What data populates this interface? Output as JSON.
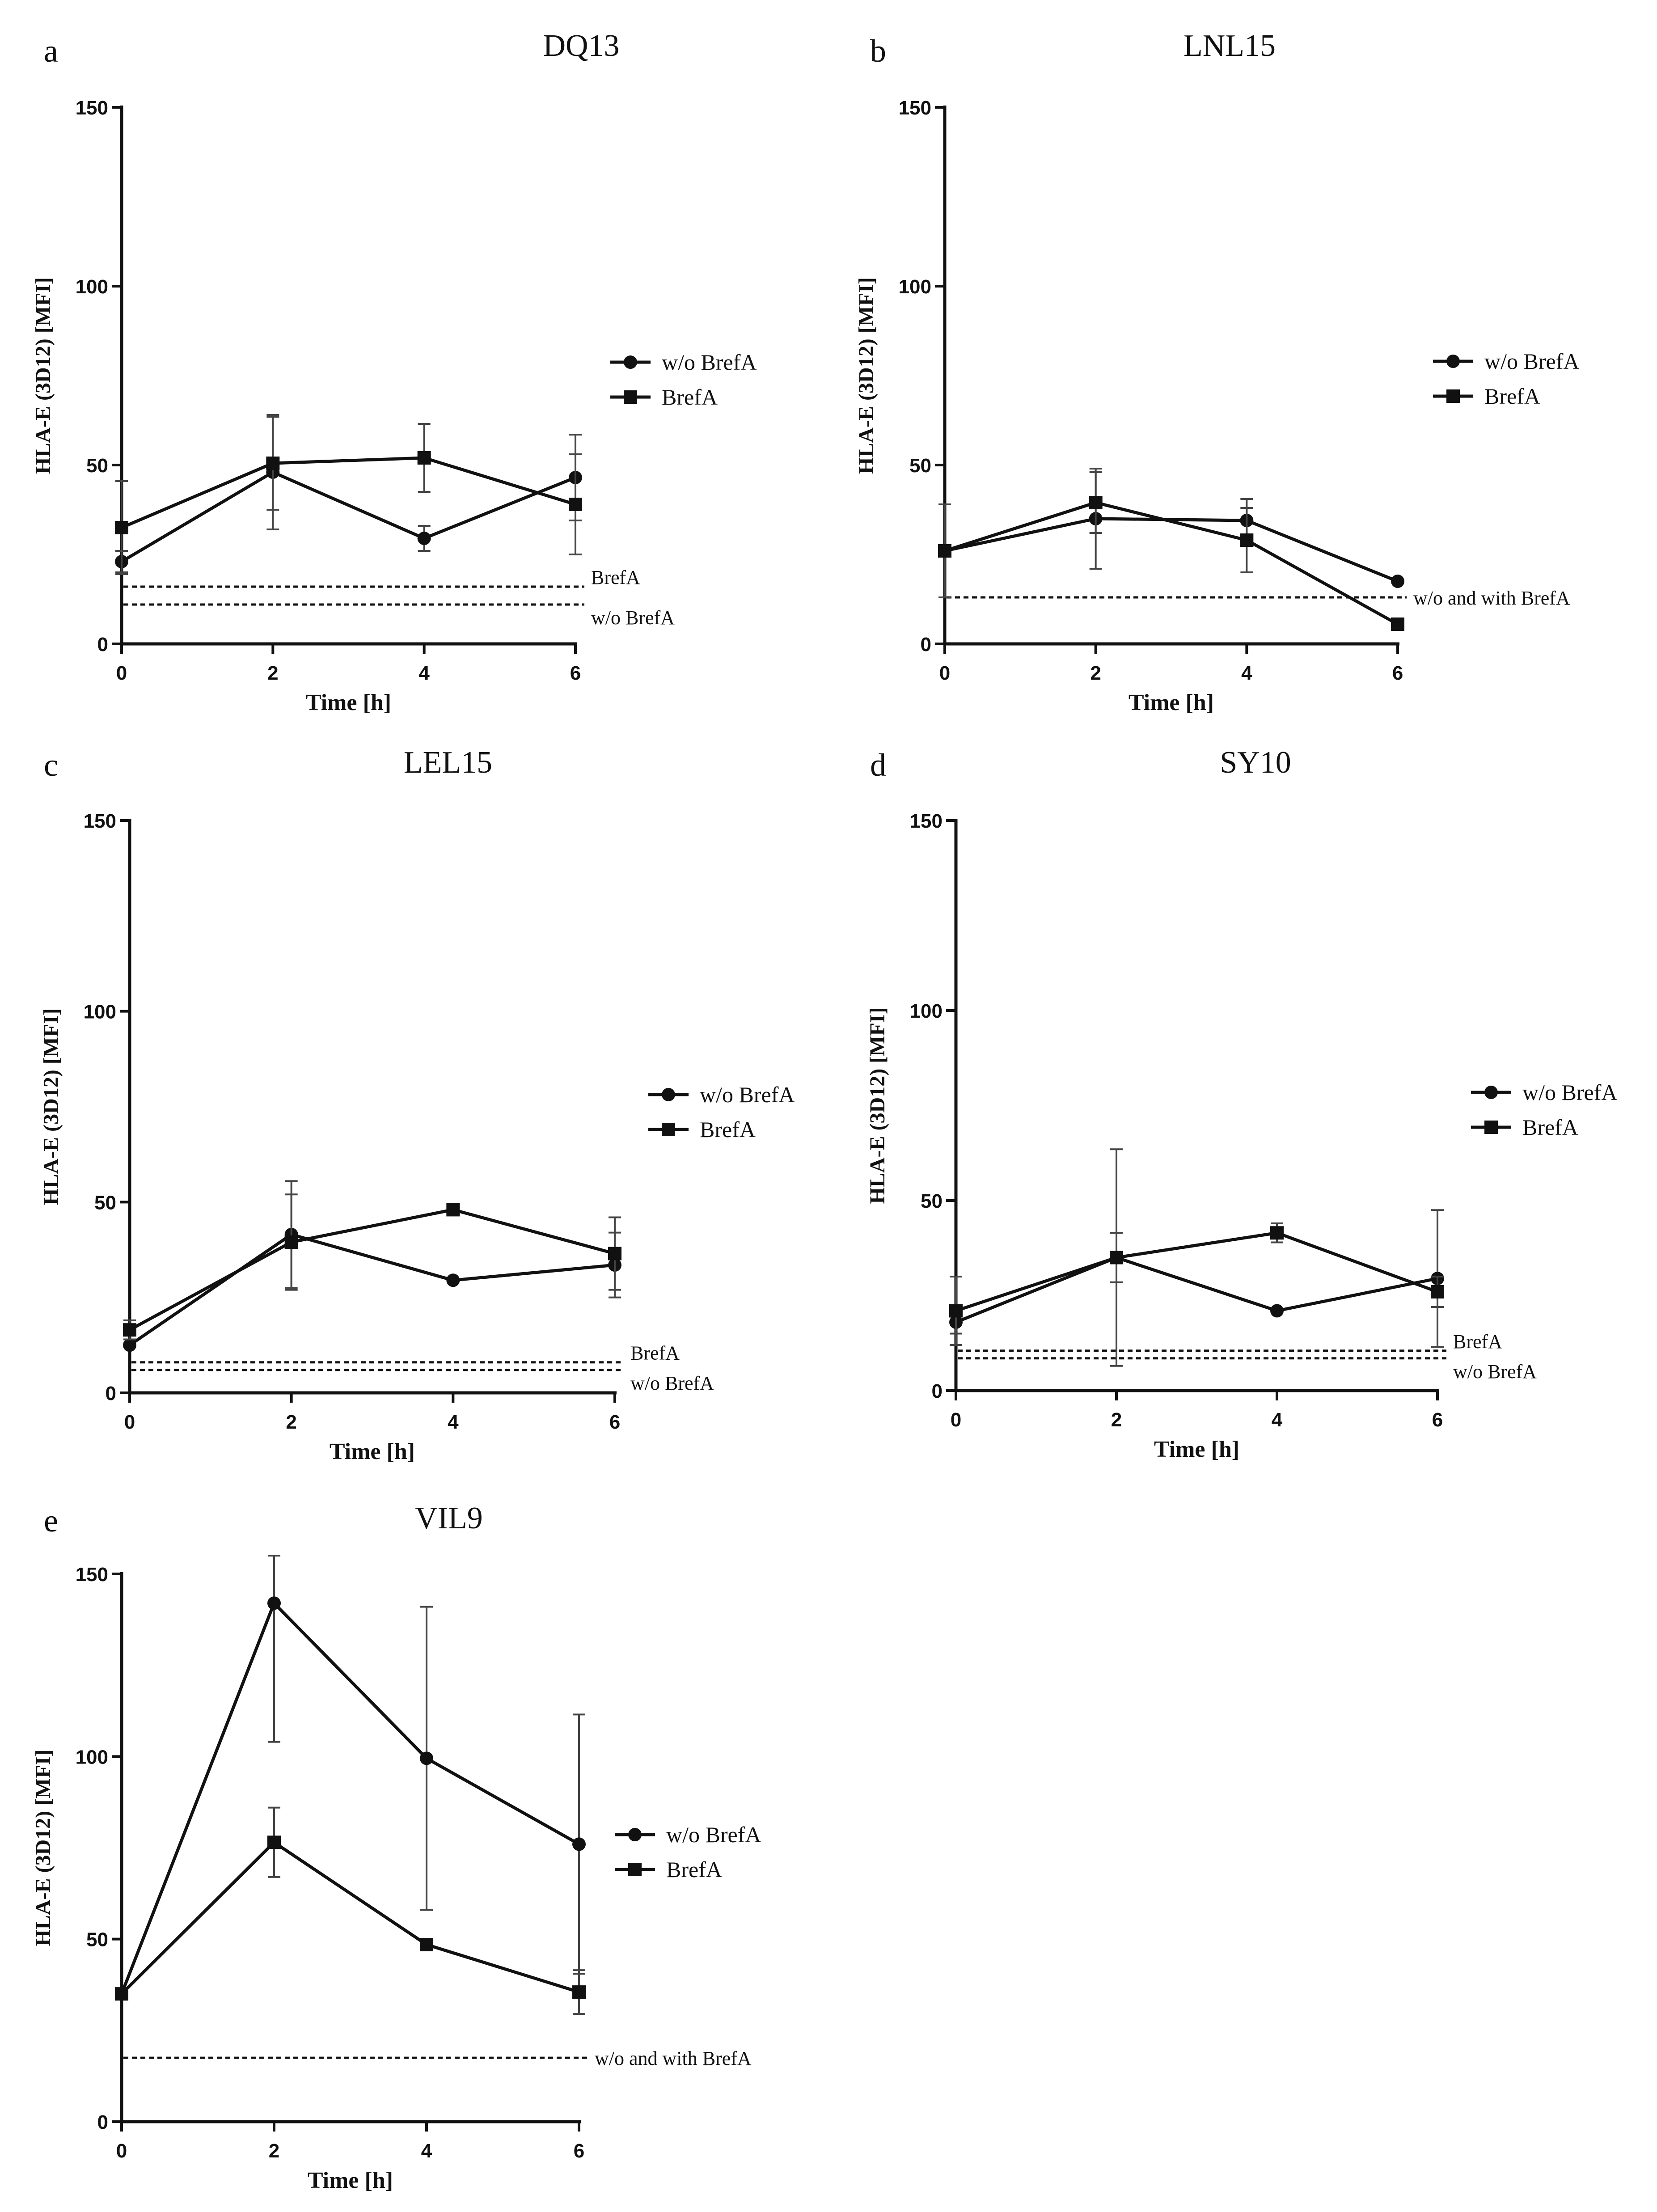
{
  "chart_data": [
    {
      "type": "line",
      "panel_label": "a",
      "title": "DQ13",
      "xlabel": "Time [h]",
      "ylabel": "HLA-E (3D12) [MFI]",
      "xlim": [
        0,
        6
      ],
      "ylim": [
        0,
        150
      ],
      "x_ticks": [
        "0",
        "2",
        "4",
        "6"
      ],
      "y_ticks": [
        "0",
        "50",
        "100",
        "150"
      ],
      "legend": {
        "placement": "right",
        "entries": [
          "w/o BrefA",
          "BrefA"
        ]
      },
      "x": [
        0,
        2,
        4,
        6
      ],
      "series": [
        {
          "name": "w/o BrefA",
          "marker": "circle",
          "values": [
            23,
            48,
            29.5,
            46.5
          ],
          "err": [
            3,
            16,
            3.5,
            12
          ]
        },
        {
          "name": "BrefA",
          "marker": "square",
          "values": [
            32.5,
            50.5,
            52,
            39
          ],
          "err": [
            13,
            13,
            9.5,
            14
          ]
        }
      ],
      "baselines": [
        {
          "label": "BrefA",
          "value": 16
        },
        {
          "label": "w/o BrefA",
          "value": 11
        }
      ]
    },
    {
      "type": "line",
      "panel_label": "b",
      "title": "LNL15",
      "xlabel": "Time [h]",
      "ylabel": "HLA-E (3D12) [MFI]",
      "xlim": [
        0,
        6
      ],
      "ylim": [
        0,
        150
      ],
      "x_ticks": [
        "0",
        "2",
        "4",
        "6"
      ],
      "y_ticks": [
        "0",
        "50",
        "100",
        "150"
      ],
      "legend": {
        "placement": "right",
        "entries": [
          "w/o BrefA",
          "BrefA"
        ]
      },
      "x": [
        0,
        2,
        4,
        6
      ],
      "series": [
        {
          "name": "w/o BrefA",
          "marker": "circle",
          "values": [
            26,
            35,
            34.5,
            17.5
          ],
          "err": [
            0,
            14,
            6,
            0
          ]
        },
        {
          "name": "BrefA",
          "marker": "square",
          "values": [
            26,
            39.5,
            29,
            5.5
          ],
          "err": [
            13,
            8.5,
            9,
            0
          ]
        }
      ],
      "baselines": [
        {
          "label": "w/o and with BrefA",
          "value": 13
        }
      ]
    },
    {
      "type": "line",
      "panel_label": "c",
      "title": "LEL15",
      "xlabel": "Time [h]",
      "ylabel": "HLA-E (3D12) [MFI]",
      "xlim": [
        0,
        6
      ],
      "ylim": [
        0,
        150
      ],
      "x_ticks": [
        "0",
        "2",
        "4",
        "6"
      ],
      "y_ticks": [
        "0",
        "50",
        "100",
        "150"
      ],
      "legend": {
        "placement": "right",
        "entries": [
          "w/o BrefA",
          "BrefA"
        ]
      },
      "x": [
        0,
        2,
        4,
        6
      ],
      "series": [
        {
          "name": "w/o BrefA",
          "marker": "circle",
          "values": [
            12.5,
            41.5,
            29.5,
            33.5
          ],
          "err": [
            0,
            14,
            0,
            8.5
          ]
        },
        {
          "name": "BrefA",
          "marker": "square",
          "values": [
            16.5,
            39.5,
            48,
            36.5
          ],
          "err": [
            2.5,
            12.5,
            0,
            9.5
          ]
        }
      ],
      "baselines": [
        {
          "label": "BrefA",
          "value": 8
        },
        {
          "label": "w/o BrefA",
          "value": 6
        }
      ]
    },
    {
      "type": "line",
      "panel_label": "d",
      "title": "SY10",
      "xlabel": "Time [h]",
      "ylabel": "HLA-E (3D12) [MFI]",
      "xlim": [
        0,
        6
      ],
      "ylim": [
        0,
        150
      ],
      "x_ticks": [
        "0",
        "2",
        "4",
        "6"
      ],
      "y_ticks": [
        "0",
        "50",
        "100",
        "150"
      ],
      "legend": {
        "placement": "right",
        "entries": [
          "w/o BrefA",
          "BrefA"
        ]
      },
      "x": [
        0,
        2,
        4,
        6
      ],
      "series": [
        {
          "name": "w/o BrefA",
          "marker": "circle",
          "values": [
            18,
            35,
            21,
            29.5
          ],
          "err": [
            3,
            28.5,
            0,
            18
          ]
        },
        {
          "name": "BrefA",
          "marker": "square",
          "values": [
            21,
            35,
            41.5,
            26
          ],
          "err": [
            9,
            6.5,
            2.5,
            4
          ]
        }
      ],
      "baselines": [
        {
          "label": "BrefA",
          "value": 10.5
        },
        {
          "label": "w/o BrefA",
          "value": 8.5
        }
      ]
    },
    {
      "type": "line",
      "panel_label": "e",
      "title": "VIL9",
      "xlabel": "Time [h]",
      "ylabel": "HLA-E (3D12) [MFI]",
      "xlim": [
        0,
        6
      ],
      "ylim": [
        0,
        150
      ],
      "x_ticks": [
        "0",
        "2",
        "4",
        "6"
      ],
      "y_ticks": [
        "0",
        "50",
        "100",
        "150"
      ],
      "legend": {
        "placement": "right",
        "entries": [
          "w/o BrefA",
          "BrefA"
        ]
      },
      "x": [
        0,
        2,
        4,
        6
      ],
      "series": [
        {
          "name": "w/o BrefA",
          "marker": "circle",
          "values": [
            35,
            142,
            99.5,
            76
          ],
          "err": [
            0,
            38,
            41.5,
            35.5
          ]
        },
        {
          "name": "BrefA",
          "marker": "square",
          "values": [
            35,
            76.5,
            48.5,
            35.5
          ],
          "err": [
            0,
            9.5,
            0,
            6
          ]
        }
      ],
      "baselines": [
        {
          "label": "w/o and with BrefA",
          "value": 17.5
        }
      ]
    }
  ]
}
